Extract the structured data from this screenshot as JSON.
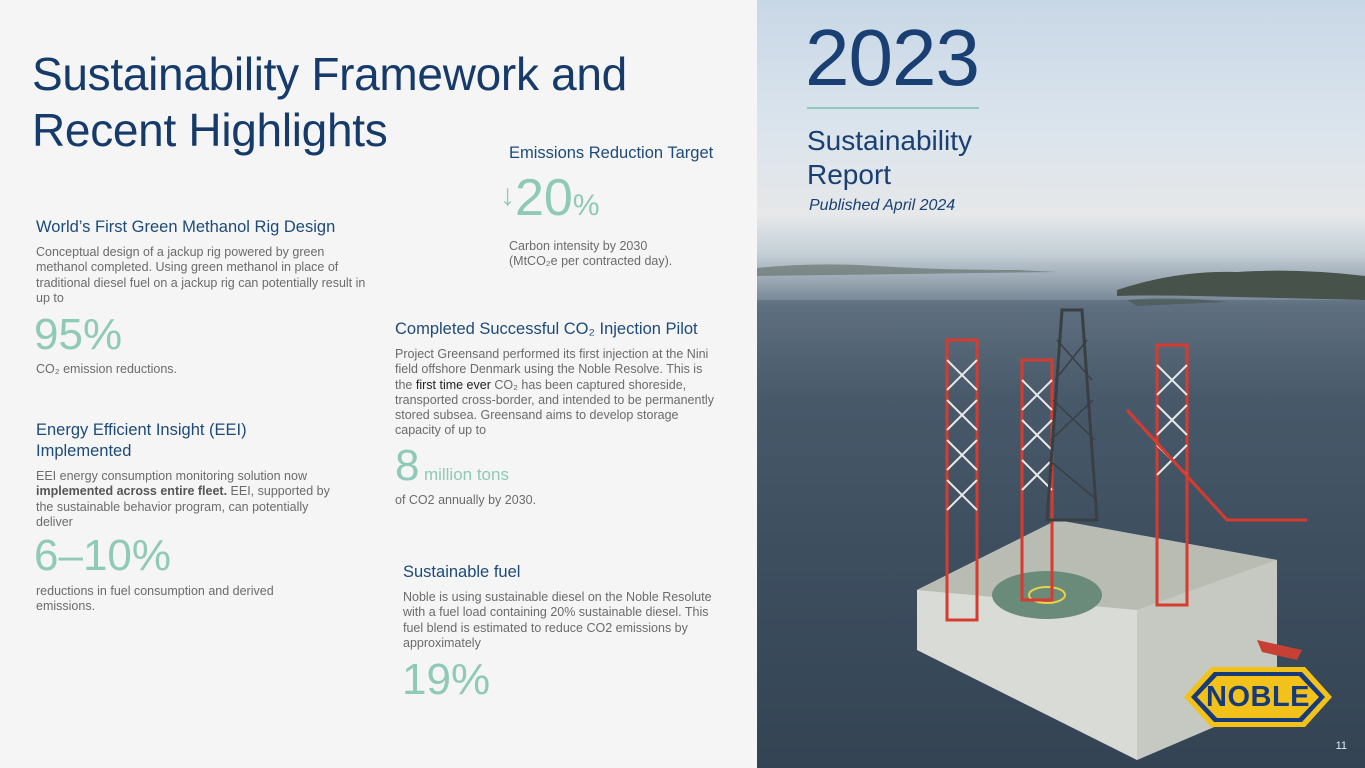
{
  "title": [
    "Sustainability Framework and",
    "Recent Highlights"
  ],
  "methanol": {
    "heading": "World’s First Green Methanol Rig Design",
    "body": "Conceptual design of a jackup rig powered by green methanol completed. Using green methanol in place of traditional diesel fuel on a jackup rig can potentially result in up to",
    "value": "95%",
    "caption": "CO₂ emission reductions."
  },
  "eei": {
    "heading": "Energy Efficient Insight (EEI) Implemented",
    "body_pre": "EEI energy consumption monitoring solution now ",
    "body_bold": "implemented across entire fleet.",
    "body_post": " EEI, supported by the sustainable behavior program, can potentially deliver",
    "value": "6–10%",
    "caption": "reductions in fuel consumption and derived emissions."
  },
  "emissions": {
    "heading": "Emissions Reduction Target",
    "arrow": "↓",
    "value": "20",
    "unit": "%",
    "caption_line1": "Carbon intensity by 2030",
    "caption_line2": "(MtCO₂e per contracted day)."
  },
  "co2": {
    "heading": "Completed Successful CO₂ Injection Pilot",
    "body_pre": "Project Greensand performed its first injection at the Nini field offshore Denmark using the Noble Resolve. This is the ",
    "body_highlight": "first time ever",
    "body_post": "  CO₂ has been captured shoreside, transported cross-border, and intended to be permanently stored subsea. Greensand aims to develop storage capacity of up to",
    "value": "8",
    "unit": "million tons",
    "caption": "of CO2 annually by 2030."
  },
  "fuel": {
    "heading": "Sustainable fuel",
    "body": "Noble is using sustainable diesel on the Noble Resolute with a fuel load containing 20% sustainable diesel. This fuel blend is estimated to reduce CO2 emissions by approximately",
    "value": "19%"
  },
  "report": {
    "year": "2023",
    "label_line1": "Sustainability",
    "label_line2": "Report",
    "published": "Published April 2024"
  },
  "logo": {
    "text": "NOBLE"
  },
  "page_number": "11",
  "colors": {
    "navy": "#163b6b",
    "accent": "#8fc9b7",
    "logo_yellow": "#f2c21b",
    "logo_blue": "#173a7a"
  }
}
